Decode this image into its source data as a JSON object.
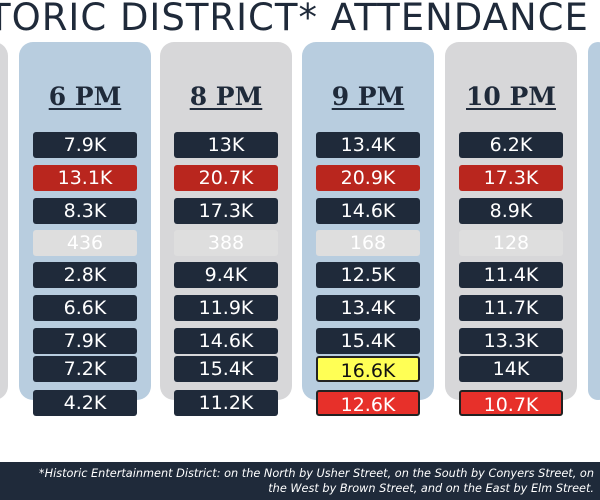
{
  "title": "TORIC DISTRICT* ATTENDANCE",
  "footnote": "*Historic Entertainment District: on the North by Usher Street, on the South by Conyers Street, on the West by Brown Street, and on the East by Elm Street.",
  "colors": {
    "dark": "#1f2a3a",
    "red": "#b9261e",
    "light": "#dedede",
    "yellow": "#ffff55",
    "bright_red": "#e7302a"
  },
  "chart_data": {
    "type": "table",
    "columns": [
      {
        "label": "6 PM",
        "cells": [
          {
            "text": "7.9K",
            "value": 7900,
            "style": "dark"
          },
          {
            "text": "13.1K",
            "value": 13100,
            "style": "red"
          },
          {
            "text": "8.3K",
            "value": 8300,
            "style": "dark"
          },
          {
            "text": "436",
            "value": 436,
            "style": "light"
          },
          {
            "text": "2.8K",
            "value": 2800,
            "style": "dark"
          },
          {
            "text": "6.6K",
            "value": 6600,
            "style": "dark"
          },
          {
            "text": "7.9K",
            "value": 7900,
            "style": "dark"
          },
          {
            "text": "7.2K",
            "value": 7200,
            "style": "dark"
          },
          {
            "text": "4.2K",
            "value": 4200,
            "style": "dark"
          }
        ]
      },
      {
        "label": "8 PM",
        "cells": [
          {
            "text": "13K",
            "value": 13000,
            "style": "dark"
          },
          {
            "text": "20.7K",
            "value": 20700,
            "style": "red"
          },
          {
            "text": "17.3K",
            "value": 17300,
            "style": "dark"
          },
          {
            "text": "388",
            "value": 388,
            "style": "light"
          },
          {
            "text": "9.4K",
            "value": 9400,
            "style": "dark"
          },
          {
            "text": "11.9K",
            "value": 11900,
            "style": "dark"
          },
          {
            "text": "14.6K",
            "value": 14600,
            "style": "dark"
          },
          {
            "text": "15.4K",
            "value": 15400,
            "style": "dark"
          },
          {
            "text": "11.2K",
            "value": 11200,
            "style": "dark"
          }
        ]
      },
      {
        "label": "9 PM",
        "cells": [
          {
            "text": "13.4K",
            "value": 13400,
            "style": "dark"
          },
          {
            "text": "20.9K",
            "value": 20900,
            "style": "red"
          },
          {
            "text": "14.6K",
            "value": 14600,
            "style": "dark"
          },
          {
            "text": "168",
            "value": 168,
            "style": "light"
          },
          {
            "text": "12.5K",
            "value": 12500,
            "style": "dark"
          },
          {
            "text": "13.4K",
            "value": 13400,
            "style": "dark"
          },
          {
            "text": "15.4K",
            "value": 15400,
            "style": "dark"
          },
          {
            "text": "16.6K",
            "value": 16600,
            "style": "yellow"
          },
          {
            "text": "12.6K",
            "value": 12600,
            "style": "bright"
          }
        ]
      },
      {
        "label": "10 PM",
        "cells": [
          {
            "text": "6.2K",
            "value": 6200,
            "style": "dark"
          },
          {
            "text": "17.3K",
            "value": 17300,
            "style": "red"
          },
          {
            "text": "8.9K",
            "value": 8900,
            "style": "dark"
          },
          {
            "text": "128",
            "value": 128,
            "style": "light"
          },
          {
            "text": "11.4K",
            "value": 11400,
            "style": "dark"
          },
          {
            "text": "11.7K",
            "value": 11700,
            "style": "dark"
          },
          {
            "text": "13.3K",
            "value": 13300,
            "style": "dark"
          },
          {
            "text": "14K",
            "value": 14000,
            "style": "dark"
          },
          {
            "text": "10.7K",
            "value": 10700,
            "style": "bright"
          }
        ]
      }
    ]
  }
}
